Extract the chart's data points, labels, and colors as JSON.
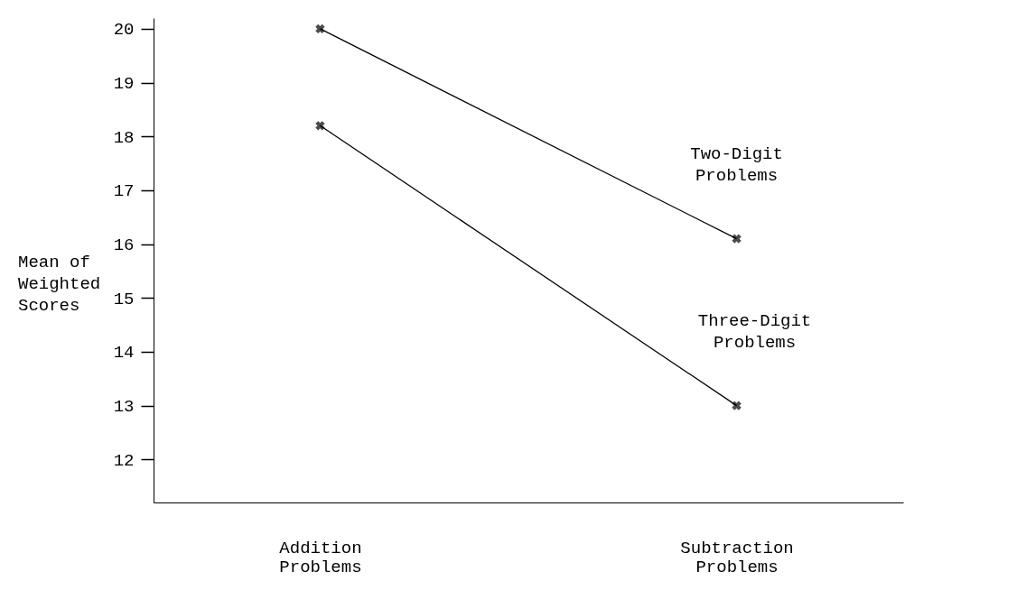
{
  "chart_data": {
    "type": "line",
    "ylabel": "Mean of Weighted Scores",
    "categories": [
      "Addition Problems",
      "Subtraction Problems"
    ],
    "series": [
      {
        "name": "Two-Digit Problems",
        "color": "#000000",
        "values": [
          20.0,
          16.1
        ]
      },
      {
        "name": "Three-Digit Problems",
        "color": "#000000",
        "values": [
          18.2,
          13.0
        ]
      }
    ],
    "ylim": [
      11.2,
      20.2
    ],
    "yticks": [
      12,
      13,
      14,
      15,
      16,
      17,
      18,
      19,
      20
    ],
    "grid": false,
    "legend": false,
    "marker": "cross",
    "line_style": "solid"
  }
}
